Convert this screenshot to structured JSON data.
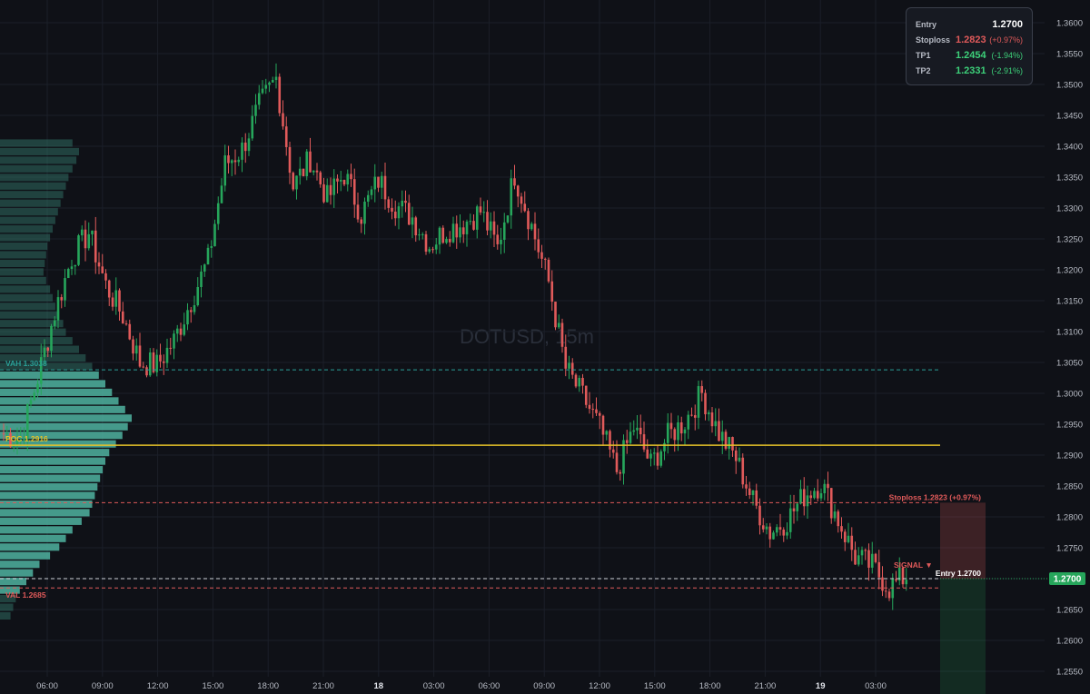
{
  "watermark": "DOTUSD, 15m",
  "colors": {
    "background": "#0f1117",
    "up": "#26a65b",
    "down": "#e05a5a",
    "poc": "#e6c229",
    "vah": "#2aa198",
    "val": "#e05a5a",
    "entry_badge": "#26a65b",
    "profile": "#4fb3a0"
  },
  "info_panel": {
    "entry": {
      "label": "Entry",
      "value": "1.2700"
    },
    "stoploss": {
      "label": "Stoploss",
      "value": "1.2823",
      "pct": "(+0.97%)"
    },
    "tp1": {
      "label": "TP1",
      "value": "1.2454",
      "pct": "(-1.94%)"
    },
    "tp2": {
      "label": "TP2",
      "value": "1.2331",
      "pct": "(-2.91%)"
    }
  },
  "levels": {
    "vah": {
      "label": "VAH 1.3038",
      "price": 1.3038
    },
    "poc": {
      "label": "POC 1.2916",
      "price": 1.2916
    },
    "val": {
      "label": "VAL 1.2685",
      "price": 1.2685
    },
    "stoploss": {
      "label": "Stoploss 1.2823 (+0.97%)",
      "price": 1.2823
    },
    "entry": {
      "label": "Entry 1.2700",
      "price": 1.27
    }
  },
  "signal_label": "SIGNAL ▼",
  "price_badge": "1.2700",
  "chart_data": {
    "type": "candlestick",
    "symbol": "DOTUSD",
    "interval": "15m",
    "y_axis": {
      "range": [
        1.2535,
        1.365
      ],
      "ticks": [
        "1.3600",
        "1.3550",
        "1.3500",
        "1.3450",
        "1.3400",
        "1.3350",
        "1.3300",
        "1.3250",
        "1.3200",
        "1.3150",
        "1.3100",
        "1.3050",
        "1.3000",
        "1.2950",
        "1.2900",
        "1.2850",
        "1.2800",
        "1.2750",
        "1.2700",
        "1.2650",
        "1.2600",
        "1.2550"
      ]
    },
    "x_axis": {
      "ticks": [
        {
          "label": "06:00",
          "bold": false
        },
        {
          "label": "09:00",
          "bold": false
        },
        {
          "label": "12:00",
          "bold": false
        },
        {
          "label": "15:00",
          "bold": false
        },
        {
          "label": "18:00",
          "bold": false
        },
        {
          "label": "21:00",
          "bold": false
        },
        {
          "label": "18",
          "bold": true
        },
        {
          "label": "03:00",
          "bold": false
        },
        {
          "label": "06:00",
          "bold": false
        },
        {
          "label": "09:00",
          "bold": false
        },
        {
          "label": "12:00",
          "bold": false
        },
        {
          "label": "15:00",
          "bold": false
        },
        {
          "label": "18:00",
          "bold": false
        },
        {
          "label": "21:00",
          "bold": false
        },
        {
          "label": "19",
          "bold": true
        },
        {
          "label": "03:00",
          "bold": false
        }
      ]
    },
    "trend_anchors": [
      1.2935,
      1.2925,
      1.3025,
      1.313,
      1.322,
      1.326,
      1.3175,
      1.3125,
      1.305,
      1.3045,
      1.3085,
      1.315,
      1.3215,
      1.337,
      1.3395,
      1.3465,
      1.351,
      1.3335,
      1.338,
      1.3315,
      1.3355,
      1.329,
      1.3345,
      1.3305,
      1.3285,
      1.324,
      1.3265,
      1.3275,
      1.3295,
      1.3235,
      1.3355,
      1.327,
      1.318,
      1.304,
      1.2995,
      1.2945,
      1.2875,
      1.2945,
      1.2885,
      1.293,
      1.2955,
      1.3,
      1.2935,
      1.2895,
      1.2825,
      1.2775,
      1.2795,
      1.2835,
      1.2855,
      1.2795,
      1.2735,
      1.272,
      1.2685,
      1.2705,
      1.2745,
      1.2755,
      1.2695,
      1.2695
    ],
    "volume_profile": [
      0.55,
      0.6,
      0.58,
      0.55,
      0.52,
      0.5,
      0.48,
      0.46,
      0.44,
      0.42,
      0.4,
      0.38,
      0.36,
      0.35,
      0.34,
      0.33,
      0.35,
      0.38,
      0.4,
      0.42,
      0.45,
      0.48,
      0.5,
      0.55,
      0.6,
      0.65,
      0.7,
      0.75,
      0.8,
      0.85,
      0.9,
      0.95,
      1.0,
      0.97,
      0.93,
      0.88,
      0.83,
      0.8,
      0.78,
      0.76,
      0.74,
      0.72,
      0.7,
      0.68,
      0.62,
      0.55,
      0.5,
      0.45,
      0.38,
      0.3,
      0.25,
      0.2,
      0.15,
      0.12,
      0.1,
      0.08
    ]
  }
}
